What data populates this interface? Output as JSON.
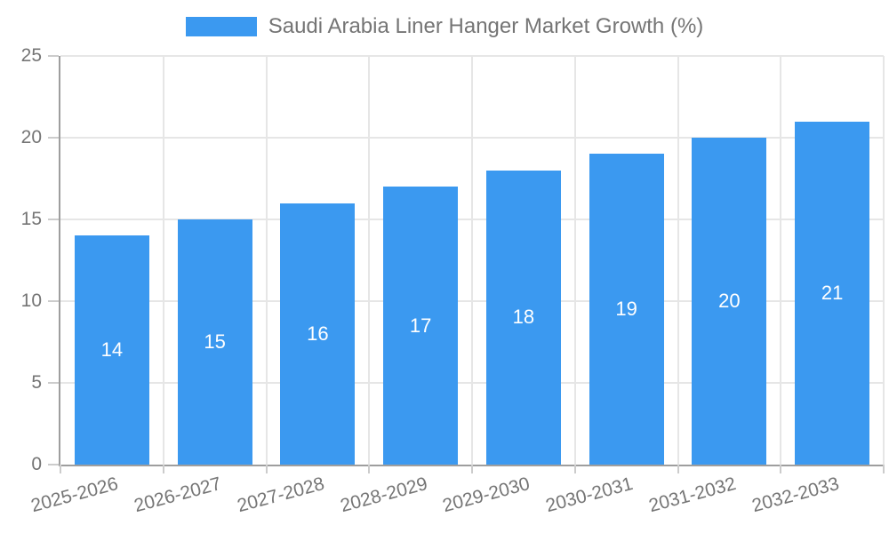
{
  "legend": {
    "label": "Saudi Arabia Liner Hanger Market Growth (%)"
  },
  "colors": {
    "bar": "#3B99F0",
    "axis_text": "#757575",
    "axis_line": "#9E9E9E",
    "grid": "#E6E6E6",
    "tick": "#CCCCCC",
    "value_label": "#FFFFFF",
    "background": "#FFFFFF"
  },
  "chart_data": {
    "type": "bar",
    "title": "Saudi Arabia Liner Hanger Market Growth (%)",
    "categories": [
      "2025-2026",
      "2026-2027",
      "2027-2028",
      "2028-2029",
      "2029-2030",
      "2030-2031",
      "2031-2032",
      "2032-2033"
    ],
    "values": [
      14,
      15,
      16,
      17,
      18,
      19,
      20,
      21
    ],
    "xlabel": "",
    "ylabel": "",
    "ylim": [
      0,
      25
    ],
    "yticks": [
      0,
      5,
      10,
      15,
      20,
      25
    ],
    "grid": true,
    "legend_position": "top",
    "value_labels_shown": true
  }
}
